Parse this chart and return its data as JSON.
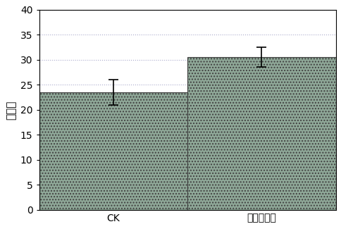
{
  "categories": [
    "CK",
    "深红红螺菌"
  ],
  "values": [
    23.5,
    30.5
  ],
  "errors": [
    2.5,
    2.0
  ],
  "bar_color": "#8fa898",
  "bar_edgecolor": "#404040",
  "hatch": "....",
  "ylabel": "成菜数",
  "ylim": [
    0,
    40
  ],
  "yticks": [
    0,
    5,
    10,
    15,
    20,
    25,
    30,
    35,
    40
  ],
  "grid_color": "#aaaacc",
  "grid_linestyle": "dotted",
  "bar_width": 0.5,
  "figsize": [
    4.85,
    3.25
  ],
  "dpi": 100,
  "label_fontsize": 11,
  "tick_fontsize": 10,
  "x_positions": [
    0.25,
    0.75
  ]
}
